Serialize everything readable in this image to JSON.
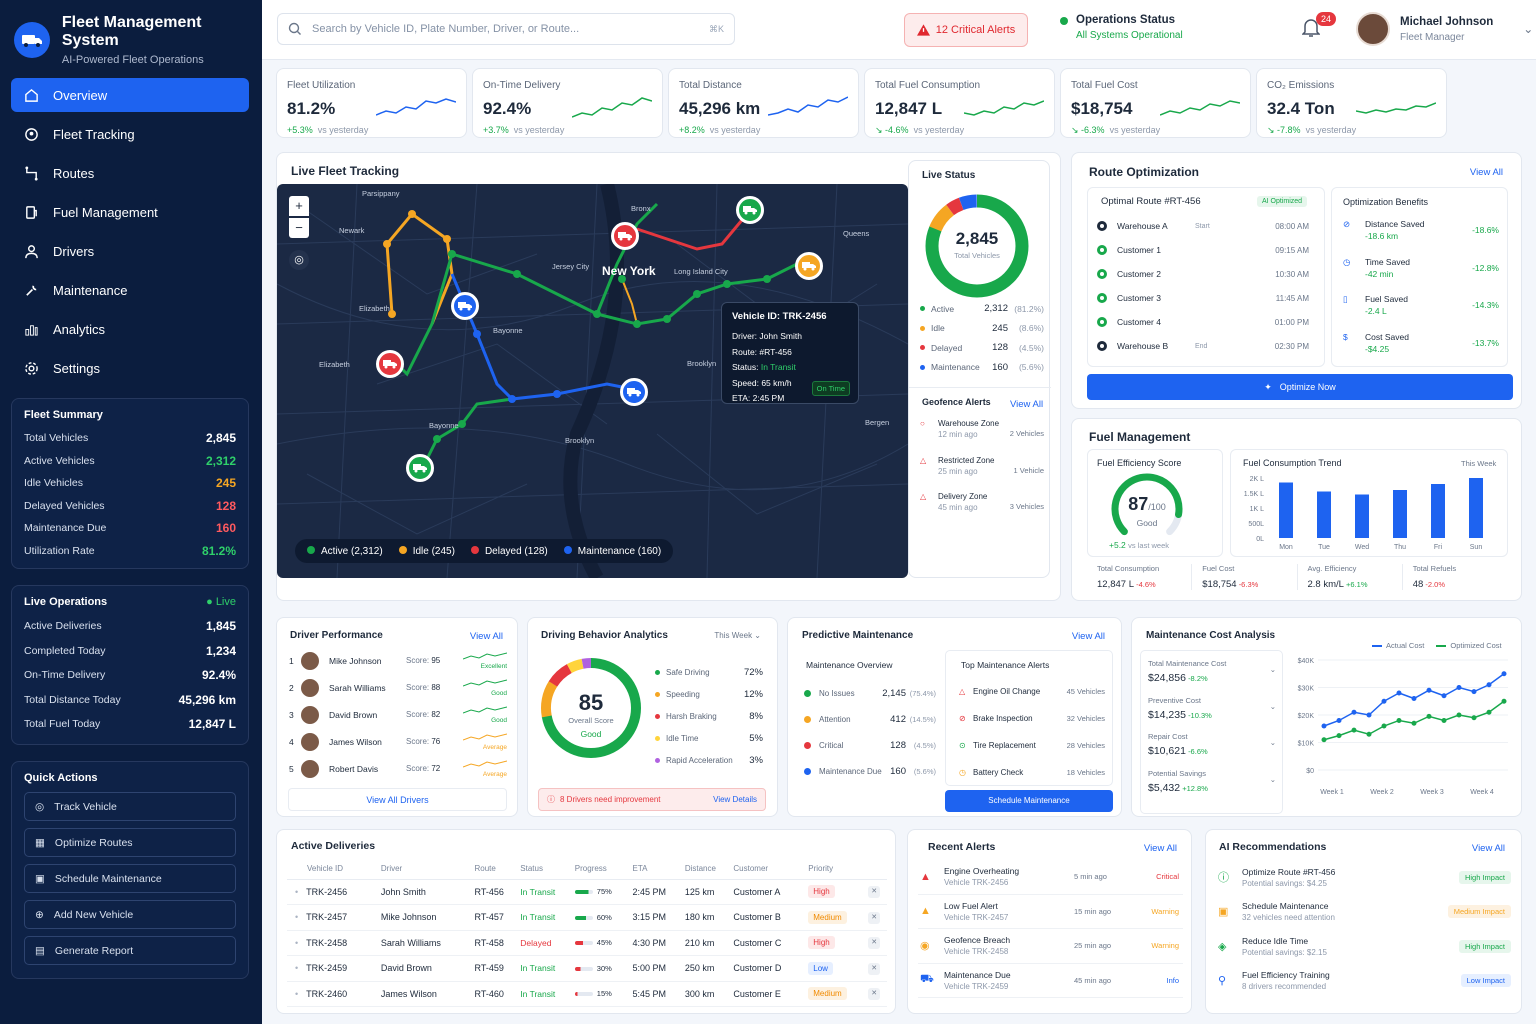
{
  "brand": {
    "title": "Fleet Management System",
    "subtitle": "AI-Powered Fleet Operations"
  },
  "nav": [
    "Overview",
    "Fleet Tracking",
    "Routes",
    "Fuel Management",
    "Drivers",
    "Maintenance",
    "Analytics",
    "Settings"
  ],
  "fleet_summary": {
    "title": "Fleet Summary",
    "rows": [
      {
        "label": "Total Vehicles",
        "value": "2,845",
        "color": "#ffffff"
      },
      {
        "label": "Active Vehicles",
        "value": "2,312",
        "color": "#2fd06a"
      },
      {
        "label": "Idle Vehicles",
        "value": "245",
        "color": "#f5a623"
      },
      {
        "label": "Delayed Vehicles",
        "value": "128",
        "color": "#ff5a5f"
      },
      {
        "label": "Maintenance Due",
        "value": "160",
        "color": "#ff5a5f"
      },
      {
        "label": "Utilization Rate",
        "value": "81.2%",
        "color": "#2fd06a"
      }
    ]
  },
  "live_ops": {
    "title": "Live Operations",
    "status": "Live",
    "rows": [
      {
        "label": "Active Deliveries",
        "value": "1,845"
      },
      {
        "label": "Completed Today",
        "value": "1,234"
      },
      {
        "label": "On-Time Delivery",
        "value": "92.4%"
      },
      {
        "label": "Total Distance Today",
        "value": "45,296 km"
      },
      {
        "label": "Total Fuel Today",
        "value": "12,847 L"
      }
    ]
  },
  "quick_actions": {
    "title": "Quick Actions",
    "items": [
      "Track Vehicle",
      "Optimize Routes",
      "Schedule Maintenance",
      "Add New Vehicle",
      "Generate Report"
    ]
  },
  "topbar": {
    "search_placeholder": "Search by Vehicle ID, Plate Number, Driver, or Route...",
    "shortcut": "⌘K",
    "alerts": "12 Critical Alerts",
    "ops_title": "Operations Status",
    "ops_status": "All Systems Operational",
    "notif_count": "24",
    "user_name": "Michael Johnson",
    "user_role": "Fleet Manager"
  },
  "kpis": [
    {
      "label": "Fleet Utilization",
      "value": "81.2%",
      "change": "+5.3%",
      "note": "vs yesterday"
    },
    {
      "label": "On-Time Delivery",
      "value": "92.4%",
      "change": "+3.7%",
      "note": "vs yesterday"
    },
    {
      "label": "Total Distance",
      "value": "45,296 km",
      "change": "+8.2%",
      "note": "vs yesterday"
    },
    {
      "label": "Total Fuel Consumption",
      "value": "12,847 L",
      "change": "↘ -4.6%",
      "note": "vs yesterday"
    },
    {
      "label": "Total Fuel Cost",
      "value": "$18,754",
      "change": "↘ -6.3%",
      "note": "vs yesterday"
    },
    {
      "label": "CO₂ Emissions",
      "value": "32.4 Ton",
      "change": "↘ -7.8%",
      "note": "vs yesterday"
    }
  ],
  "map": {
    "title": "Live Fleet Tracking",
    "places": [
      "Parsippany",
      "Newark",
      "Jersey City",
      "New York",
      "Bronx",
      "Queens",
      "Long Island City",
      "Elizabeth",
      "Bayonne",
      "Elizabeth",
      "Bayonne",
      "Brooklyn",
      "Brooklyn",
      "Bergen"
    ],
    "legend": [
      {
        "label": "Active (2,312)",
        "color": "#18a84b"
      },
      {
        "label": "Idle (245)",
        "color": "#f5a623"
      },
      {
        "label": "Delayed (128)",
        "color": "#e5373e"
      },
      {
        "label": "Maintenance (160)",
        "color": "#1e63f0"
      }
    ],
    "tooltip": {
      "title": "Vehicle ID: TRK-2456",
      "rows": [
        {
          "k": "Driver:",
          "v": "John Smith"
        },
        {
          "k": "Route:",
          "v": "#RT-456"
        },
        {
          "k": "Status:",
          "v": "In Transit"
        },
        {
          "k": "Speed:",
          "v": "65 km/h"
        },
        {
          "k": "ETA:",
          "v": "2:45 PM"
        }
      ],
      "badge": "On Time"
    }
  },
  "live_status": {
    "title": "Live Status",
    "total": "2,845",
    "total_label": "Total Vehicles",
    "rows": [
      {
        "label": "Active",
        "value": "2,312",
        "pct": "(81.2%)",
        "color": "#18a84b"
      },
      {
        "label": "Idle",
        "value": "245",
        "pct": "(8.6%)",
        "color": "#f5a623"
      },
      {
        "label": "Delayed",
        "value": "128",
        "pct": "(4.5%)",
        "color": "#e5373e"
      },
      {
        "label": "Maintenance",
        "value": "160",
        "pct": "(5.6%)",
        "color": "#1e63f0"
      }
    ],
    "geo_title": "Geofence Alerts",
    "geo_view": "View All",
    "geo": [
      {
        "name": "Warehouse Zone",
        "time": "12 min ago",
        "count": "2 Vehicles"
      },
      {
        "name": "Restricted Zone",
        "time": "25 min ago",
        "count": "1 Vehicle"
      },
      {
        "name": "Delivery Zone",
        "time": "45 min ago",
        "count": "3 Vehicles"
      }
    ]
  },
  "route_opt": {
    "title": "Route Optimization",
    "view": "View All",
    "route": "Optimal Route #RT-456",
    "tag": "AI Optimized",
    "stops": [
      {
        "name": "Warehouse A",
        "tag": "Start",
        "time": "08:00 AM"
      },
      {
        "name": "Customer 1",
        "tag": "",
        "time": "09:15 AM"
      },
      {
        "name": "Customer 2",
        "tag": "",
        "time": "10:30 AM"
      },
      {
        "name": "Customer 3",
        "tag": "",
        "time": "11:45 AM"
      },
      {
        "name": "Customer 4",
        "tag": "",
        "time": "01:00 PM"
      },
      {
        "name": "Warehouse B",
        "tag": "End",
        "time": "02:30 PM"
      }
    ],
    "benefits_title": "Optimization Benefits",
    "benefits": [
      {
        "label": "Distance Saved",
        "value": "-18.6 km",
        "pct": "-18.6%"
      },
      {
        "label": "Time Saved",
        "value": "-42 min",
        "pct": "-12.8%"
      },
      {
        "label": "Fuel Saved",
        "value": "-2.4 L",
        "pct": "-14.3%"
      },
      {
        "label": "Cost Saved",
        "value": "-$4.25",
        "pct": "-13.7%"
      }
    ],
    "button": "Optimize Now"
  },
  "fuel": {
    "title": "Fuel Management",
    "score_title": "Fuel Efficiency Score",
    "score": "87",
    "score_max": "/100",
    "score_label": "Good",
    "score_change": "+5.2",
    "score_note": "vs last week",
    "trend_title": "Fuel Consumption Trend",
    "trend_period": "This Week",
    "footer": [
      {
        "label": "Total Consumption",
        "value": "12,847 L",
        "change": "-4.6%"
      },
      {
        "label": "Fuel Cost",
        "value": "$18,754",
        "change": "-6.3%"
      },
      {
        "label": "Avg. Efficiency",
        "value": "2.8 km/L",
        "change": "+6.1%"
      },
      {
        "label": "Total Refuels",
        "value": "48",
        "change": "-2.0%"
      }
    ]
  },
  "chart_data": [
    {
      "type": "bar",
      "title": "Fuel Consumption Trend",
      "categories": [
        "Mon",
        "Tue",
        "Wed",
        "Thu",
        "Fri",
        "Sun"
      ],
      "values": [
        1850,
        1550,
        1450,
        1600,
        1800,
        2000
      ],
      "yticks": [
        "2K L",
        "1.5K L",
        "1K L",
        "500L",
        "0L"
      ],
      "ylim": [
        0,
        2000
      ]
    },
    {
      "type": "line",
      "title": "Maintenance Cost Analysis",
      "categories": [
        "Week 1",
        "Week 2",
        "Week 3",
        "Week 4"
      ],
      "x": [
        0,
        0.5,
        1,
        1.5,
        2,
        2.5,
        3,
        3.5,
        4,
        4.5,
        5,
        5.5,
        6
      ],
      "series": [
        {
          "name": "Actual Cost",
          "color": "#1e63f0",
          "values": [
            16000,
            18000,
            21000,
            20000,
            25000,
            28000,
            26000,
            29000,
            27000,
            30000,
            28500,
            31000,
            35000
          ]
        },
        {
          "name": "Optimized Cost",
          "color": "#18a84b",
          "values": [
            11000,
            12500,
            14500,
            13000,
            16000,
            18000,
            17000,
            19500,
            18000,
            20000,
            19000,
            21000,
            25000
          ]
        }
      ],
      "yticks": [
        "$40K",
        "$30K",
        "$20K",
        "$10K",
        "$0"
      ],
      "ylim": [
        0,
        40000
      ]
    }
  ],
  "drivers": {
    "title": "Driver Performance",
    "view": "View All",
    "rows": [
      {
        "rank": "1",
        "name": "Mike Johnson",
        "score": "95",
        "tag": "Excellent",
        "color": "#18a84b"
      },
      {
        "rank": "2",
        "name": "Sarah Williams",
        "score": "88",
        "tag": "Good",
        "color": "#18a84b"
      },
      {
        "rank": "3",
        "name": "David Brown",
        "score": "82",
        "tag": "Good",
        "color": "#18a84b"
      },
      {
        "rank": "4",
        "name": "James Wilson",
        "score": "76",
        "tag": "Average",
        "color": "#f5a623"
      },
      {
        "rank": "5",
        "name": "Robert Davis",
        "score": "72",
        "tag": "Average",
        "color": "#f5a623"
      }
    ],
    "score_label": "Score:",
    "all": "View All Drivers"
  },
  "behavior": {
    "title": "Driving Behavior Analytics",
    "period": "This Week",
    "score": "85",
    "score_label": "Overall Score",
    "score_tag": "Good",
    "rows": [
      {
        "label": "Safe Driving",
        "value": "72%",
        "color": "#18a84b"
      },
      {
        "label": "Speeding",
        "value": "12%",
        "color": "#f5a623"
      },
      {
        "label": "Harsh Braking",
        "value": "8%",
        "color": "#e5373e"
      },
      {
        "label": "Idle Time",
        "value": "5%",
        "color": "#ffd43b"
      },
      {
        "label": "Rapid Acceleration",
        "value": "3%",
        "color": "#b062e0"
      }
    ],
    "alert": "8 Drivers need improvement",
    "alert_link": "View Details"
  },
  "predictive": {
    "title": "Predictive Maintenance",
    "view": "View All",
    "overview_title": "Maintenance Overview",
    "overview": [
      {
        "label": "No Issues",
        "value": "2,145",
        "pct": "(75.4%)",
        "color": "#18a84b"
      },
      {
        "label": "Attention",
        "value": "412",
        "pct": "(14.5%)",
        "color": "#f5a623"
      },
      {
        "label": "Critical",
        "value": "128",
        "pct": "(4.5%)",
        "color": "#e5373e"
      },
      {
        "label": "Maintenance Due",
        "value": "160",
        "pct": "(5.6%)",
        "color": "#1e63f0"
      }
    ],
    "alerts_title": "Top Maintenance Alerts",
    "alerts": [
      {
        "label": "Engine Oil Change",
        "count": "45 Vehicles",
        "color": "#e5373e"
      },
      {
        "label": "Brake Inspection",
        "count": "32 Vehicles",
        "color": "#e5373e"
      },
      {
        "label": "Tire Replacement",
        "count": "28 Vehicles",
        "color": "#18a84b"
      },
      {
        "label": "Battery Check",
        "count": "18 Vehicles",
        "color": "#f5a623"
      }
    ],
    "button": "Schedule Maintenance"
  },
  "maint_cost": {
    "title": "Maintenance Cost Analysis",
    "items": [
      {
        "label": "Total Maintenance Cost",
        "value": "$24,856",
        "change": "-8.2%"
      },
      {
        "label": "Preventive Cost",
        "value": "$14,235",
        "change": "-10.3%"
      },
      {
        "label": "Repair Cost",
        "value": "$10,621",
        "change": "-6.6%"
      },
      {
        "label": "Potential Savings",
        "value": "$5,432",
        "change": "+12.8%"
      }
    ]
  },
  "deliveries": {
    "title": "Active Deliveries",
    "headers": [
      "Vehicle ID",
      "Driver",
      "Route",
      "Status",
      "Progress",
      "ETA",
      "Distance",
      "Customer",
      "Priority"
    ],
    "rows": [
      {
        "id": "TRK-2456",
        "driver": "John Smith",
        "route": "RT-456",
        "status": "In Transit",
        "progress": "75%",
        "p": 0.75,
        "eta": "2:45 PM",
        "dist": "125 km",
        "cust": "Customer A",
        "pri": "High"
      },
      {
        "id": "TRK-2457",
        "driver": "Mike Johnson",
        "route": "RT-457",
        "status": "In Transit",
        "progress": "60%",
        "p": 0.6,
        "eta": "3:15 PM",
        "dist": "180 km",
        "cust": "Customer B",
        "pri": "Medium"
      },
      {
        "id": "TRK-2458",
        "driver": "Sarah Williams",
        "route": "RT-458",
        "status": "Delayed",
        "progress": "45%",
        "p": 0.45,
        "eta": "4:30 PM",
        "dist": "210 km",
        "cust": "Customer C",
        "pri": "High"
      },
      {
        "id": "TRK-2459",
        "driver": "David Brown",
        "route": "RT-459",
        "status": "In Transit",
        "progress": "30%",
        "p": 0.3,
        "eta": "5:00 PM",
        "dist": "250 km",
        "cust": "Customer D",
        "pri": "Low"
      },
      {
        "id": "TRK-2460",
        "driver": "James Wilson",
        "route": "RT-460",
        "status": "In Transit",
        "progress": "15%",
        "p": 0.15,
        "eta": "5:45 PM",
        "dist": "300 km",
        "cust": "Customer E",
        "pri": "Medium"
      }
    ]
  },
  "recent_alerts": {
    "title": "Recent Alerts",
    "view": "View All",
    "rows": [
      {
        "title": "Engine Overheating",
        "sub": "Vehicle TRK-2456",
        "time": "5 min ago",
        "level": "Critical",
        "color": "#e5373e"
      },
      {
        "title": "Low Fuel Alert",
        "sub": "Vehicle TRK-2457",
        "time": "15 min ago",
        "level": "Warning",
        "color": "#f5a623"
      },
      {
        "title": "Geofence Breach",
        "sub": "Vehicle TRK-2458",
        "time": "25 min ago",
        "level": "Warning",
        "color": "#f5a623"
      },
      {
        "title": "Maintenance Due",
        "sub": "Vehicle TRK-2459",
        "time": "45 min ago",
        "level": "Info",
        "color": "#1e63f0"
      }
    ]
  },
  "ai_recs": {
    "title": "AI Recommendations",
    "view": "View All",
    "rows": [
      {
        "title": "Optimize Route #RT-456",
        "sub": "Potential savings: $4.25",
        "impact": "High Impact",
        "color": "#18a84b"
      },
      {
        "title": "Schedule Maintenance",
        "sub": "32 vehicles need attention",
        "impact": "Medium Impact",
        "color": "#f5a623"
      },
      {
        "title": "Reduce Idle Time",
        "sub": "Potential savings: $2.15",
        "impact": "High Impact",
        "color": "#18a84b"
      },
      {
        "title": "Fuel Efficiency Training",
        "sub": "8 drivers recommended",
        "impact": "Low Impact",
        "color": "#1e63f0"
      }
    ]
  }
}
